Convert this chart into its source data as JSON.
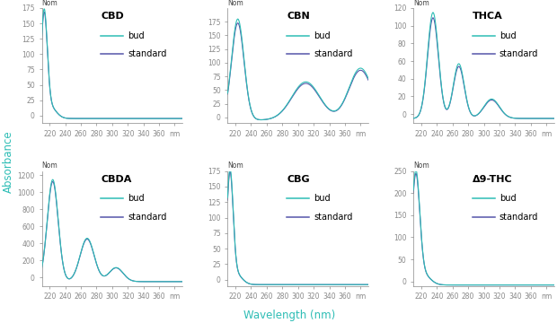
{
  "bud_color": "#2dbdb5",
  "standard_color": "#5555aa",
  "tick_fontsize": 5.5,
  "legend_fontsize": 7,
  "title_fontsize": 8,
  "x_min": 210,
  "x_max": 390,
  "subplot_order": [
    "CBD",
    "CBN",
    "THCA",
    "CBDA",
    "CBG",
    "Δ9-THC"
  ],
  "xlabel": "Wavelength (nm)",
  "ylabel": "Absorbance",
  "xlabel_color": "#2dbdb5",
  "ylabel_color": "#2dbdb5"
}
